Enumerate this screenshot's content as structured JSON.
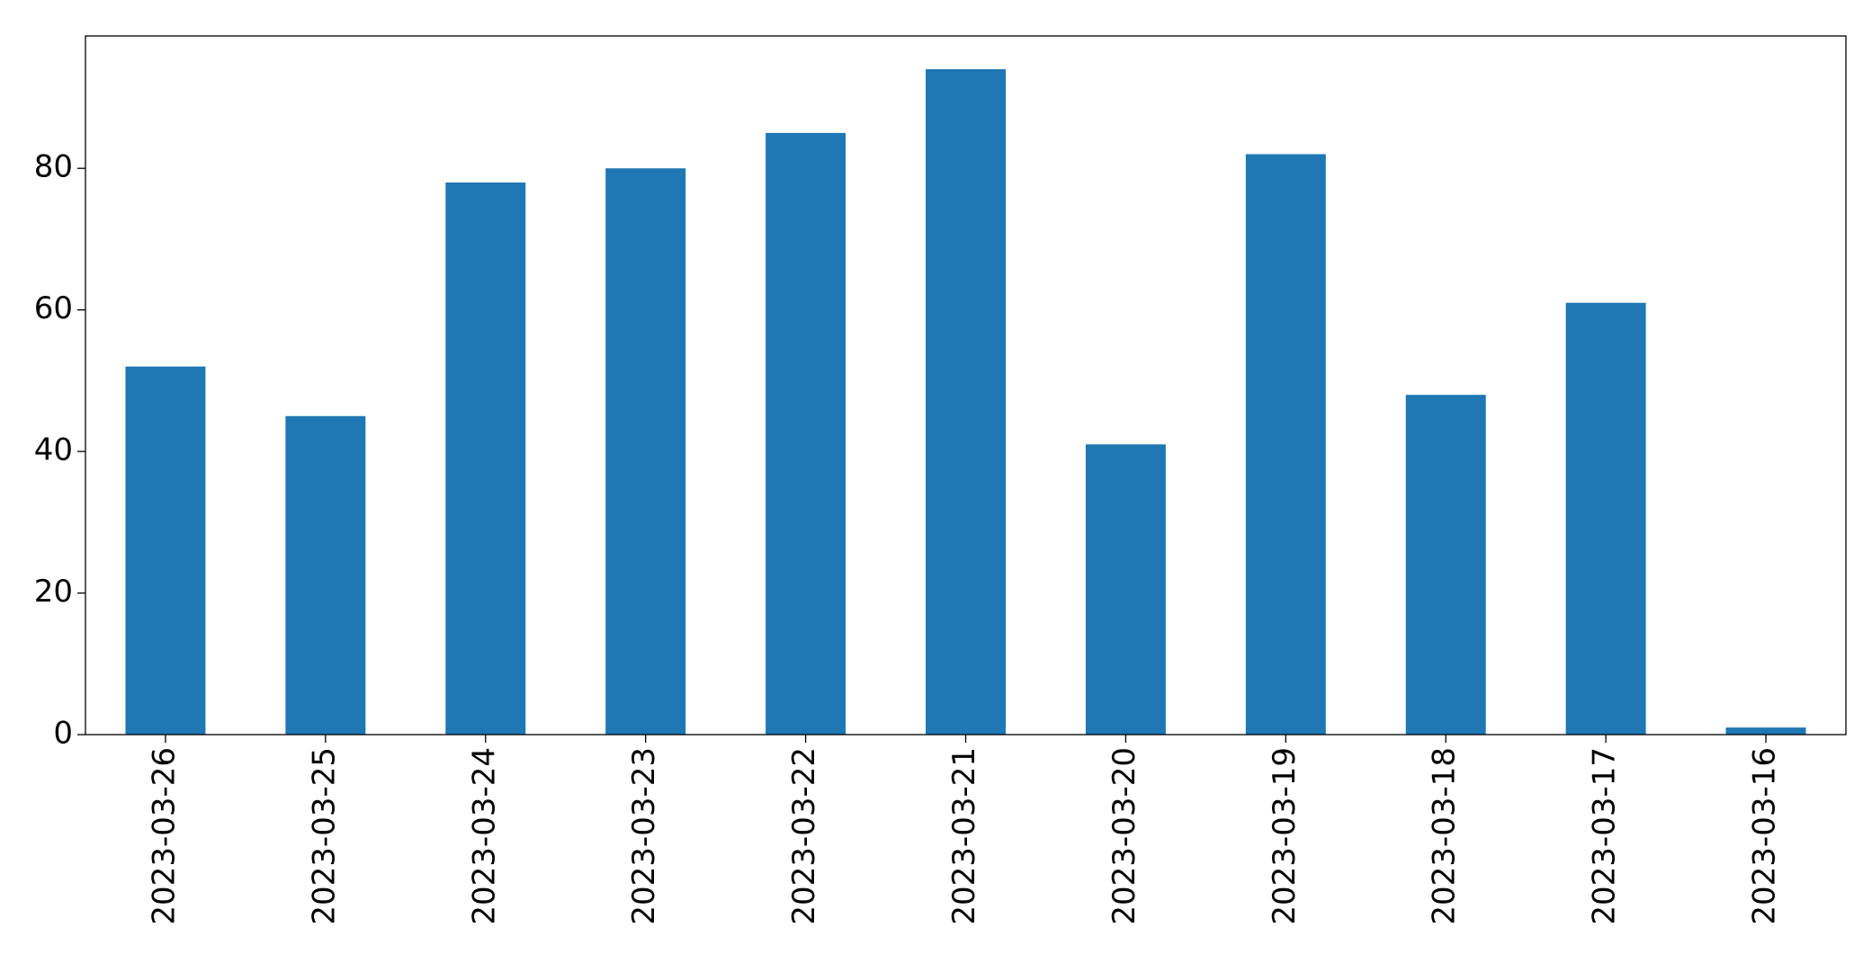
{
  "chart_data": {
    "type": "bar",
    "categories": [
      "2023-03-26",
      "2023-03-25",
      "2023-03-24",
      "2023-03-23",
      "2023-03-22",
      "2023-03-21",
      "2023-03-20",
      "2023-03-19",
      "2023-03-18",
      "2023-03-17",
      "2023-03-16"
    ],
    "values": [
      52,
      45,
      78,
      80,
      85,
      94,
      41,
      82,
      48,
      61,
      1
    ],
    "color": "#1f77b4",
    "ylim": [
      0,
      98.7
    ],
    "yticks": [
      0,
      20,
      40,
      60,
      80
    ],
    "grid": false
  }
}
